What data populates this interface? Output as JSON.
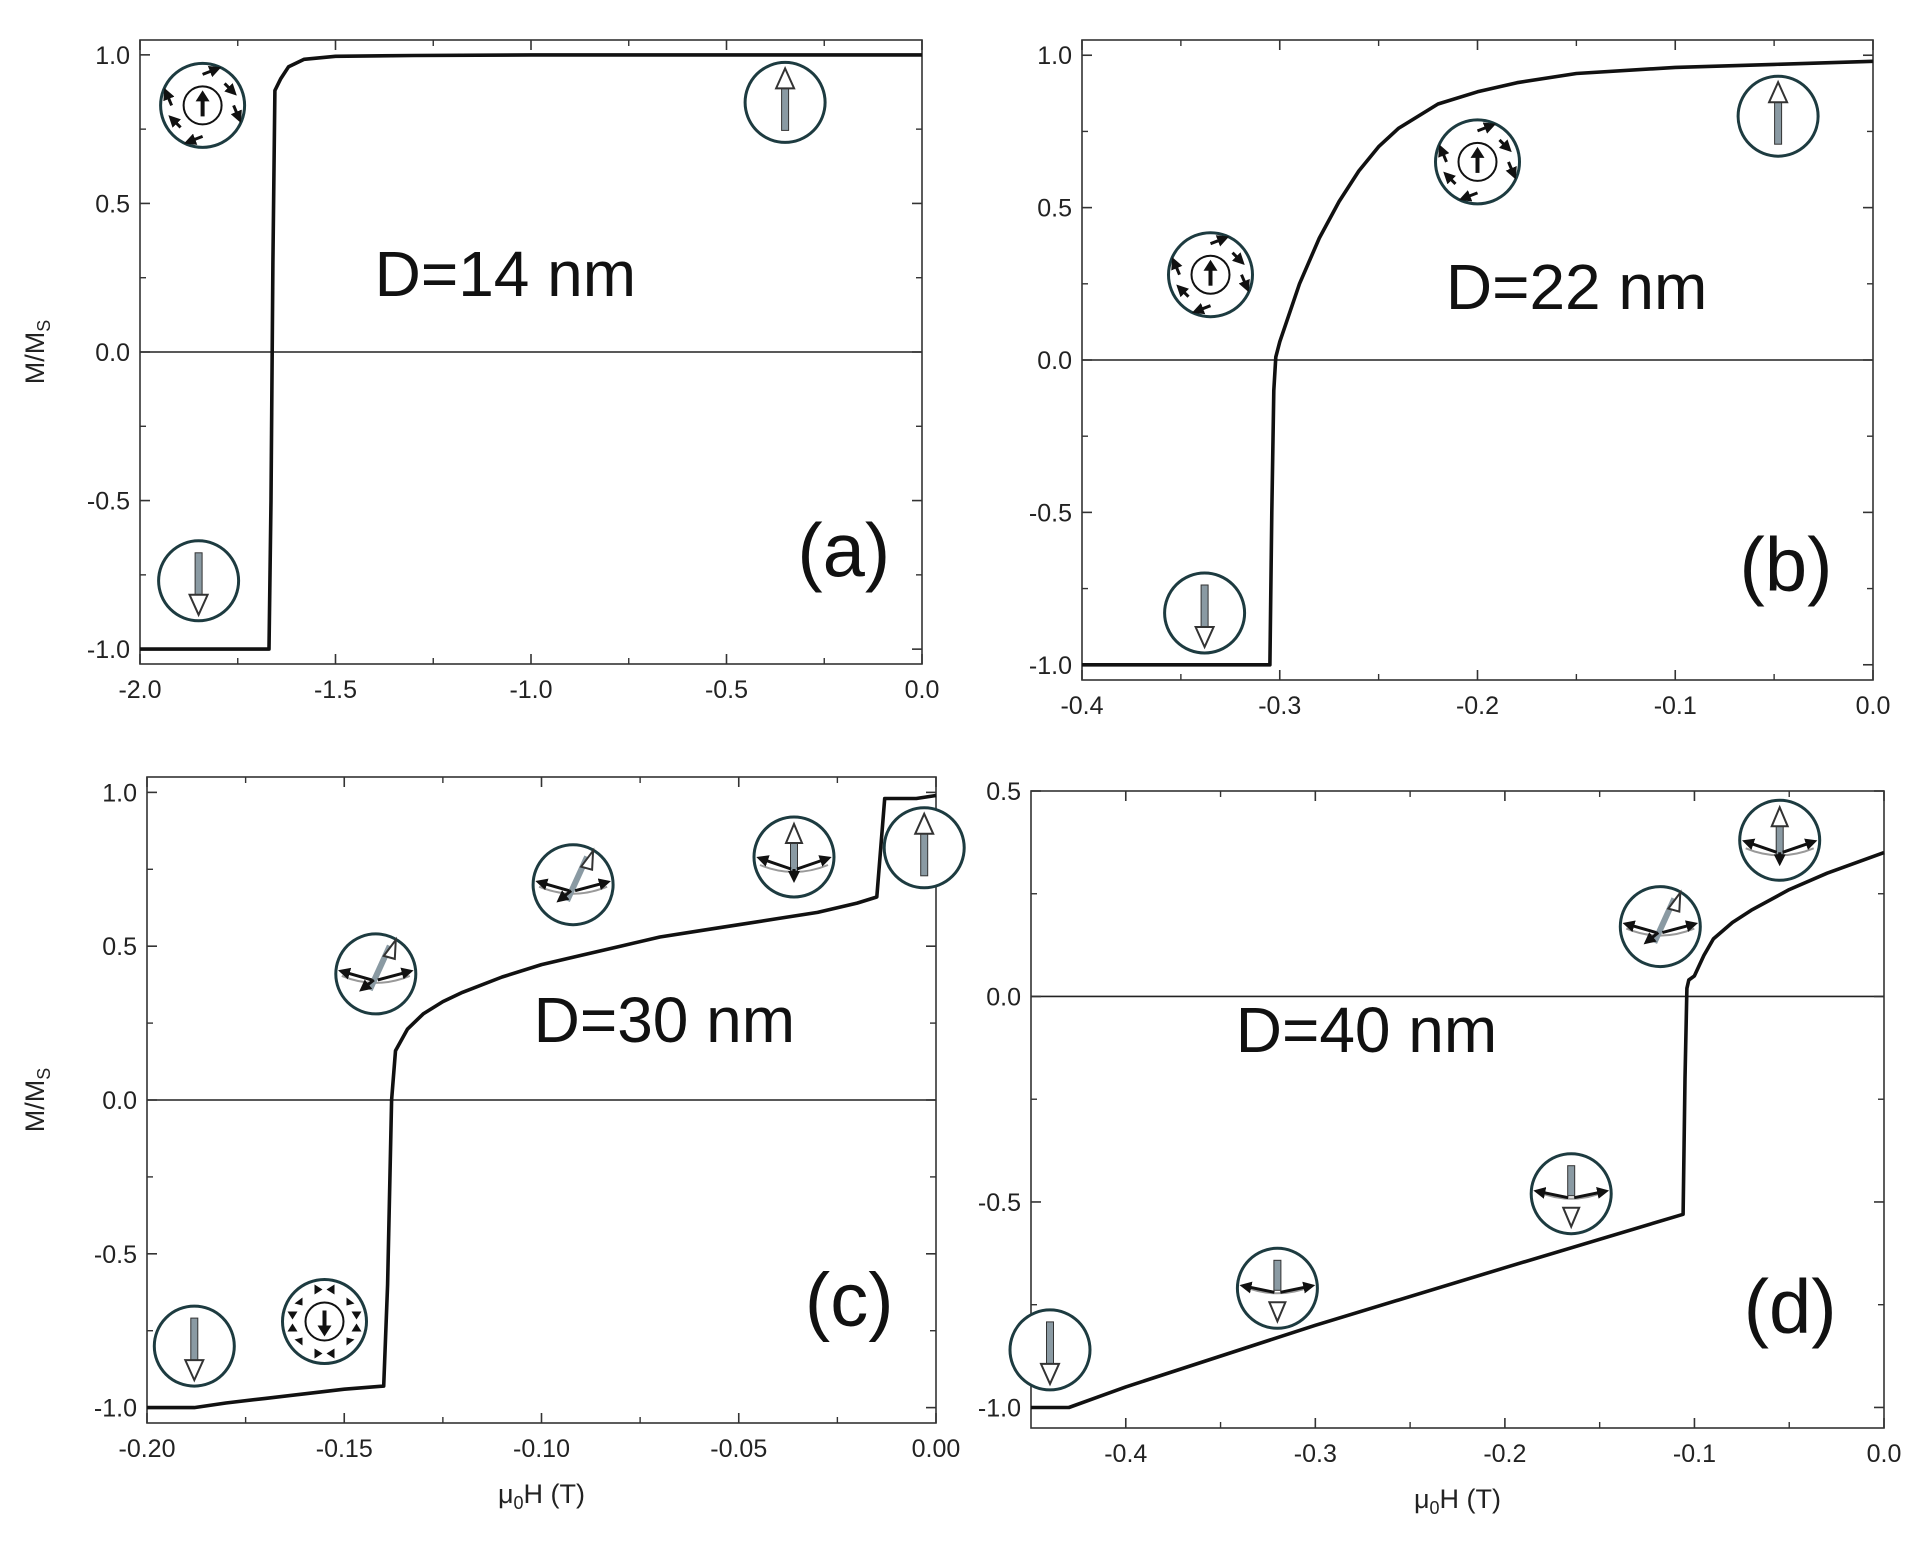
{
  "chart_data": [
    {
      "type": "line",
      "title": "D=14 nm",
      "panel_label": "(a)",
      "xlabel": "",
      "ylabel": "M/M",
      "ylabel_sub": "S",
      "xlim": [
        -2.0,
        0.0
      ],
      "ylim": [
        -1.05,
        1.05
      ],
      "xticks": [
        "-2.0",
        "-1.5",
        "-1.0",
        "-0.5",
        "0.0"
      ],
      "yticks": [
        "-1.0",
        "-0.5",
        "0.0",
        "0.5",
        "1.0"
      ],
      "series": [
        {
          "x": [
            -2.0,
            -1.67,
            -1.665,
            -1.66,
            -1.655,
            -1.64,
            -1.62,
            -1.58,
            -1.5,
            -1.3,
            -1.0,
            -0.5,
            0.0
          ],
          "y": [
            -1.0,
            -1.0,
            -0.5,
            0.3,
            0.88,
            0.92,
            0.96,
            0.985,
            0.995,
            0.998,
            1.0,
            1.0,
            1.0
          ]
        }
      ],
      "insets": [
        {
          "x": -1.84,
          "y": 0.83,
          "icon": "vortex-up-icon"
        },
        {
          "x": -0.35,
          "y": 0.84,
          "icon": "spin-up-icon"
        },
        {
          "x": -1.85,
          "y": -0.77,
          "icon": "spin-down-icon"
        }
      ]
    },
    {
      "type": "line",
      "title": "D=22 nm",
      "panel_label": "(b)",
      "xlabel": "",
      "ylabel": "",
      "xlim": [
        -0.4,
        0.0
      ],
      "ylim": [
        -1.05,
        1.05
      ],
      "xticks": [
        "-0.4",
        "-0.3",
        "-0.2",
        "-0.1",
        "0.0"
      ],
      "yticks": [
        "-1.0",
        "-0.5",
        "0.0",
        "0.5",
        "1.0"
      ],
      "series": [
        {
          "x": [
            -0.4,
            -0.305,
            -0.304,
            -0.303,
            -0.302,
            -0.3,
            -0.29,
            -0.28,
            -0.27,
            -0.26,
            -0.25,
            -0.24,
            -0.22,
            -0.2,
            -0.18,
            -0.15,
            -0.1,
            -0.05,
            0.0
          ],
          "y": [
            -1.0,
            -1.0,
            -0.5,
            -0.1,
            0.01,
            0.06,
            0.25,
            0.4,
            0.52,
            0.62,
            0.7,
            0.76,
            0.84,
            0.88,
            0.91,
            0.94,
            0.96,
            0.97,
            0.98
          ]
        }
      ],
      "insets": [
        {
          "x": -0.335,
          "y": 0.28,
          "icon": "vortex-up-icon"
        },
        {
          "x": -0.2,
          "y": 0.65,
          "icon": "vortex-up-icon"
        },
        {
          "x": -0.048,
          "y": 0.8,
          "icon": "spin-up-icon"
        },
        {
          "x": -0.338,
          "y": -0.83,
          "icon": "spin-down-icon"
        }
      ]
    },
    {
      "type": "line",
      "title": "D=30 nm",
      "panel_label": "(c)",
      "xlabel": "μ",
      "xlabel_sub": "0",
      "xlabel_rest": "H (T)",
      "ylabel": "M/M",
      "ylabel_sub": "S",
      "xlim": [
        -0.2,
        0.0
      ],
      "ylim": [
        -1.05,
        1.05
      ],
      "xticks": [
        "-0.20",
        "-0.15",
        "-0.10",
        "-0.05",
        "0.00"
      ],
      "yticks": [
        "-1.0",
        "-0.5",
        "0.0",
        "0.5",
        "1.0"
      ],
      "series": [
        {
          "x": [
            -0.2,
            -0.188,
            -0.18,
            -0.17,
            -0.16,
            -0.15,
            -0.14,
            -0.139,
            -0.138,
            -0.137,
            -0.134,
            -0.13,
            -0.125,
            -0.12,
            -0.11,
            -0.1,
            -0.09,
            -0.08,
            -0.07,
            -0.06,
            -0.05,
            -0.04,
            -0.03,
            -0.02,
            -0.015,
            -0.013,
            -0.012,
            -0.005,
            0.0
          ],
          "y": [
            -1.0,
            -1.0,
            -0.985,
            -0.97,
            -0.955,
            -0.94,
            -0.93,
            -0.6,
            0.0,
            0.16,
            0.23,
            0.28,
            0.32,
            0.35,
            0.4,
            0.44,
            0.47,
            0.5,
            0.53,
            0.55,
            0.57,
            0.59,
            0.61,
            0.64,
            0.66,
            0.98,
            0.98,
            0.98,
            0.99
          ]
        }
      ],
      "insets": [
        {
          "x": -0.142,
          "y": 0.41,
          "icon": "tilted-vortex-icon"
        },
        {
          "x": -0.092,
          "y": 0.7,
          "icon": "tilted-vortex-icon"
        },
        {
          "x": -0.036,
          "y": 0.79,
          "icon": "bloch-point-up-icon"
        },
        {
          "x": -0.003,
          "y": 0.82,
          "icon": "spin-up-icon"
        },
        {
          "x": -0.155,
          "y": -0.72,
          "icon": "vortex-down-icon"
        },
        {
          "x": -0.188,
          "y": -0.8,
          "icon": "spin-down-icon"
        }
      ]
    },
    {
      "type": "line",
      "title": "D=40 nm",
      "panel_label": "(d)",
      "xlabel": "μ",
      "xlabel_sub": "0",
      "xlabel_rest": "H (T)",
      "ylabel": "",
      "xlim": [
        -0.45,
        0.0
      ],
      "ylim": [
        -1.05,
        0.5
      ],
      "xticks": [
        "-0.4",
        "-0.3",
        "-0.2",
        "-0.1",
        "0.0"
      ],
      "yticks": [
        "-1.0",
        "-0.5",
        "0.0",
        "0.5"
      ],
      "series": [
        {
          "x": [
            -0.45,
            -0.43,
            -0.4,
            -0.3,
            -0.2,
            -0.106,
            -0.105,
            -0.104,
            -0.103,
            -0.1,
            -0.095,
            -0.09,
            -0.08,
            -0.07,
            -0.05,
            -0.03,
            0.0
          ],
          "y": [
            -1.0,
            -1.0,
            -0.95,
            -0.8,
            -0.66,
            -0.53,
            -0.2,
            0.02,
            0.04,
            0.05,
            0.1,
            0.14,
            0.18,
            0.21,
            0.26,
            0.3,
            0.35
          ]
        }
      ],
      "insets": [
        {
          "x": -0.055,
          "y": 0.38,
          "icon": "bloch-point-up-icon"
        },
        {
          "x": -0.118,
          "y": 0.17,
          "icon": "tilted-vortex-icon"
        },
        {
          "x": -0.165,
          "y": -0.48,
          "icon": "bloch-point-down-icon"
        },
        {
          "x": -0.32,
          "y": -0.71,
          "icon": "bloch-point-down-icon"
        },
        {
          "x": -0.44,
          "y": -0.86,
          "icon": "spin-down-icon"
        }
      ]
    }
  ]
}
